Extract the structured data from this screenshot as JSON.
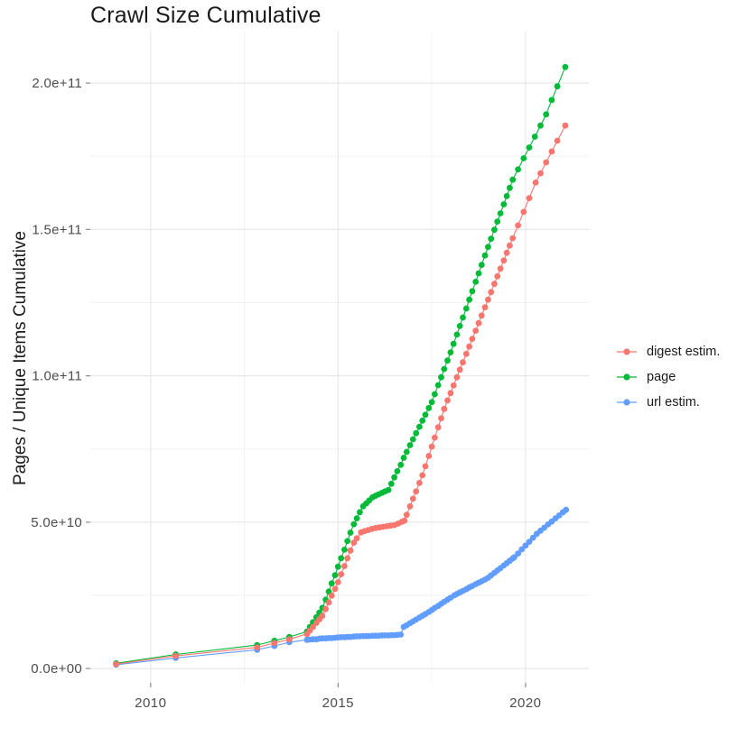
{
  "title": "Crawl Size Cumulative",
  "chart_data": {
    "type": "scatter",
    "title": "Crawl Size Cumulative",
    "xlabel": "",
    "ylabel": "Pages / Unique Items Cumulative",
    "unit": "values are cumulative counts in billions (multiply by 1e9)",
    "grid": "on",
    "legend_position": "right",
    "x_axis": {
      "ticks": [
        {
          "v": 2010,
          "label": "2010"
        },
        {
          "v": 2015,
          "label": "2015"
        },
        {
          "v": 2020,
          "label": "2020"
        }
      ],
      "minor": [
        2012.5,
        2017.5
      ],
      "range": [
        2008.39,
        2021.69
      ]
    },
    "y_axis": {
      "ticks": [
        {
          "v": 0,
          "label": "0.0e+00"
        },
        {
          "v": 50,
          "label": "5.0e+10"
        },
        {
          "v": 100,
          "label": "1.0e+11"
        },
        {
          "v": 150,
          "label": "1.5e+11"
        },
        {
          "v": 200,
          "label": "2.0e+11"
        }
      ],
      "minor": [
        25,
        75,
        125,
        175
      ],
      "range": [
        -4.9,
        217.6
      ]
    },
    "legend": [
      {
        "label": "digest estim.",
        "color": "#F8766D"
      },
      {
        "label": "page",
        "color": "#00BA38"
      },
      {
        "label": "url estim.",
        "color": "#619CFF"
      }
    ],
    "series": [
      {
        "name": "digest estim.",
        "color": "#F8766D",
        "points": [
          [
            2009.08,
            1.5
          ],
          [
            2010.67,
            4.3
          ],
          [
            2012.84,
            7.2
          ],
          [
            2013.3,
            8.7
          ],
          [
            2013.7,
            10.0
          ],
          [
            2014.17,
            11.8
          ],
          [
            2014.25,
            13.0
          ],
          [
            2014.33,
            14.2
          ],
          [
            2014.42,
            15.6
          ],
          [
            2014.5,
            16.8
          ],
          [
            2014.58,
            18.0
          ],
          [
            2014.67,
            20.3
          ],
          [
            2014.75,
            22.6
          ],
          [
            2014.83,
            24.9
          ],
          [
            2014.92,
            27.2
          ],
          [
            2015.0,
            29.5
          ],
          [
            2015.08,
            32.2
          ],
          [
            2015.17,
            35.0
          ],
          [
            2015.25,
            37.7
          ],
          [
            2015.33,
            40.3
          ],
          [
            2015.42,
            43.0
          ],
          [
            2015.5,
            44.5
          ],
          [
            2015.61,
            46.5
          ],
          [
            2015.7,
            46.9
          ],
          [
            2015.8,
            47.3
          ],
          [
            2015.9,
            47.7
          ],
          [
            2016.0,
            48.0
          ],
          [
            2016.1,
            48.2
          ],
          [
            2016.2,
            48.4
          ],
          [
            2016.3,
            48.6
          ],
          [
            2016.4,
            48.8
          ],
          [
            2016.5,
            49.0
          ],
          [
            2016.6,
            49.5
          ],
          [
            2016.7,
            50.1
          ],
          [
            2016.77,
            50.5
          ],
          [
            2016.83,
            52.5
          ],
          [
            2016.92,
            55.4
          ],
          [
            2017.0,
            58.0
          ],
          [
            2017.08,
            60.5
          ],
          [
            2017.17,
            63.4
          ],
          [
            2017.25,
            66.0
          ],
          [
            2017.33,
            69.1
          ],
          [
            2017.42,
            72.6
          ],
          [
            2017.5,
            75.8
          ],
          [
            2017.58,
            78.9
          ],
          [
            2017.67,
            82.4
          ],
          [
            2017.75,
            85.5
          ],
          [
            2017.83,
            88.7
          ],
          [
            2017.92,
            91.6
          ],
          [
            2018.0,
            94.1
          ],
          [
            2018.08,
            96.7
          ],
          [
            2018.17,
            99.5
          ],
          [
            2018.25,
            102.1
          ],
          [
            2018.33,
            104.6
          ],
          [
            2018.42,
            107.5
          ],
          [
            2018.5,
            110.0
          ],
          [
            2018.58,
            112.6
          ],
          [
            2018.67,
            115.4
          ],
          [
            2018.75,
            118.0
          ],
          [
            2018.83,
            120.6
          ],
          [
            2018.92,
            123.4
          ],
          [
            2019.0,
            126.0
          ],
          [
            2019.08,
            128.6
          ],
          [
            2019.17,
            131.4
          ],
          [
            2019.25,
            134.0
          ],
          [
            2019.33,
            136.6
          ],
          [
            2019.42,
            139.4
          ],
          [
            2019.5,
            142.0
          ],
          [
            2019.58,
            144.5
          ],
          [
            2019.66,
            147.0
          ],
          [
            2019.8,
            151.4
          ],
          [
            2019.95,
            156.0
          ],
          [
            2020.1,
            160.7
          ],
          [
            2020.27,
            166.0
          ],
          [
            2020.4,
            169.2
          ],
          [
            2020.55,
            172.9
          ],
          [
            2020.7,
            176.6
          ],
          [
            2020.85,
            180.3
          ],
          [
            2021.06,
            185.5
          ]
        ]
      },
      {
        "name": "page",
        "color": "#00BA38",
        "points": [
          [
            2009.08,
            1.8
          ],
          [
            2010.67,
            4.8
          ],
          [
            2012.84,
            8.0
          ],
          [
            2013.3,
            9.5
          ],
          [
            2013.7,
            10.8
          ],
          [
            2014.17,
            12.6
          ],
          [
            2014.25,
            14.2
          ],
          [
            2014.33,
            15.8
          ],
          [
            2014.42,
            17.5
          ],
          [
            2014.5,
            19.1
          ],
          [
            2014.58,
            20.7
          ],
          [
            2014.67,
            23.5
          ],
          [
            2014.75,
            26.3
          ],
          [
            2014.83,
            29.1
          ],
          [
            2014.92,
            31.9
          ],
          [
            2015.0,
            34.8
          ],
          [
            2015.08,
            37.7
          ],
          [
            2015.17,
            40.6
          ],
          [
            2015.25,
            43.5
          ],
          [
            2015.33,
            46.4
          ],
          [
            2015.42,
            49.3
          ],
          [
            2015.5,
            51.3
          ],
          [
            2015.58,
            53.4
          ],
          [
            2015.67,
            55.4
          ],
          [
            2015.75,
            56.4
          ],
          [
            2015.83,
            57.4
          ],
          [
            2015.92,
            58.5
          ],
          [
            2016.0,
            59.0
          ],
          [
            2016.08,
            59.5
          ],
          [
            2016.17,
            60.0
          ],
          [
            2016.25,
            60.5
          ],
          [
            2016.34,
            61.0
          ],
          [
            2016.42,
            63.1
          ],
          [
            2016.5,
            65.3
          ],
          [
            2016.58,
            67.4
          ],
          [
            2016.67,
            69.6
          ],
          [
            2016.75,
            72.0
          ],
          [
            2016.83,
            74.0
          ],
          [
            2016.92,
            76.3
          ],
          [
            2017.0,
            78.3
          ],
          [
            2017.08,
            80.4
          ],
          [
            2017.17,
            82.6
          ],
          [
            2017.25,
            84.7
          ],
          [
            2017.33,
            86.7
          ],
          [
            2017.42,
            89.0
          ],
          [
            2017.5,
            91.0
          ],
          [
            2017.58,
            93.7
          ],
          [
            2017.67,
            96.8
          ],
          [
            2017.75,
            99.5
          ],
          [
            2017.83,
            102.3
          ],
          [
            2017.92,
            105.2
          ],
          [
            2018.0,
            108.0
          ],
          [
            2018.08,
            110.9
          ],
          [
            2018.17,
            114.1
          ],
          [
            2018.25,
            117.0
          ],
          [
            2018.33,
            119.9
          ],
          [
            2018.42,
            123.0
          ],
          [
            2018.5,
            126.0
          ],
          [
            2018.58,
            128.9
          ],
          [
            2018.67,
            132.1
          ],
          [
            2018.75,
            135.0
          ],
          [
            2018.83,
            137.9
          ],
          [
            2018.92,
            141.1
          ],
          [
            2019.0,
            144.0
          ],
          [
            2019.08,
            146.8
          ],
          [
            2019.17,
            149.9
          ],
          [
            2019.25,
            152.7
          ],
          [
            2019.33,
            155.5
          ],
          [
            2019.42,
            158.6
          ],
          [
            2019.5,
            161.4
          ],
          [
            2019.58,
            164.2
          ],
          [
            2019.66,
            167.0
          ],
          [
            2019.8,
            170.5
          ],
          [
            2019.95,
            174.3
          ],
          [
            2020.1,
            178.0
          ],
          [
            2020.25,
            181.7
          ],
          [
            2020.4,
            185.5
          ],
          [
            2020.55,
            189.3
          ],
          [
            2020.7,
            194.2
          ],
          [
            2020.85,
            198.9
          ],
          [
            2021.06,
            205.5
          ]
        ]
      },
      {
        "name": "url estim.",
        "color": "#619CFF",
        "points": [
          [
            2009.08,
            1.3
          ],
          [
            2010.67,
            3.6
          ],
          [
            2012.84,
            6.4
          ],
          [
            2013.3,
            7.7
          ],
          [
            2013.7,
            9.0
          ],
          [
            2014.17,
            9.8
          ],
          [
            2014.25,
            9.9
          ],
          [
            2014.33,
            10.0
          ],
          [
            2014.42,
            10.0
          ],
          [
            2014.5,
            10.2
          ],
          [
            2014.58,
            10.3
          ],
          [
            2014.67,
            10.3
          ],
          [
            2014.75,
            10.4
          ],
          [
            2014.83,
            10.4
          ],
          [
            2014.92,
            10.5
          ],
          [
            2015.0,
            10.6
          ],
          [
            2015.08,
            10.7
          ],
          [
            2015.17,
            10.7
          ],
          [
            2015.25,
            10.8
          ],
          [
            2015.33,
            10.8
          ],
          [
            2015.42,
            10.9
          ],
          [
            2015.5,
            11.0
          ],
          [
            2015.58,
            11.0
          ],
          [
            2015.67,
            11.1
          ],
          [
            2015.75,
            11.1
          ],
          [
            2015.83,
            11.1
          ],
          [
            2015.92,
            11.2
          ],
          [
            2016.0,
            11.2
          ],
          [
            2016.08,
            11.2
          ],
          [
            2016.17,
            11.3
          ],
          [
            2016.25,
            11.3
          ],
          [
            2016.34,
            11.3
          ],
          [
            2016.42,
            11.4
          ],
          [
            2016.5,
            11.4
          ],
          [
            2016.58,
            11.5
          ],
          [
            2016.67,
            11.6
          ],
          [
            2016.75,
            14.2
          ],
          [
            2016.83,
            14.8
          ],
          [
            2016.92,
            15.5
          ],
          [
            2017.0,
            16.1
          ],
          [
            2017.08,
            16.7
          ],
          [
            2017.17,
            17.4
          ],
          [
            2017.25,
            18.0
          ],
          [
            2017.33,
            18.6
          ],
          [
            2017.42,
            19.3
          ],
          [
            2017.5,
            20.0
          ],
          [
            2017.58,
            20.7
          ],
          [
            2017.67,
            21.4
          ],
          [
            2017.75,
            22.1
          ],
          [
            2017.83,
            22.8
          ],
          [
            2017.92,
            23.5
          ],
          [
            2018.0,
            24.2
          ],
          [
            2018.1,
            25.0
          ],
          [
            2018.17,
            25.5
          ],
          [
            2018.25,
            26.0
          ],
          [
            2018.33,
            26.5
          ],
          [
            2018.42,
            27.1
          ],
          [
            2018.5,
            27.7
          ],
          [
            2018.58,
            28.2
          ],
          [
            2018.67,
            28.8
          ],
          [
            2018.75,
            29.3
          ],
          [
            2018.83,
            29.8
          ],
          [
            2018.92,
            30.4
          ],
          [
            2019.0,
            31.0
          ],
          [
            2019.08,
            31.8
          ],
          [
            2019.17,
            32.7
          ],
          [
            2019.25,
            33.5
          ],
          [
            2019.33,
            34.3
          ],
          [
            2019.42,
            35.2
          ],
          [
            2019.5,
            36.0
          ],
          [
            2019.58,
            36.8
          ],
          [
            2019.66,
            37.6
          ],
          [
            2019.7,
            38.0
          ],
          [
            2019.8,
            39.3
          ],
          [
            2019.9,
            40.7
          ],
          [
            2020.0,
            42.0
          ],
          [
            2020.1,
            43.3
          ],
          [
            2020.2,
            44.7
          ],
          [
            2020.3,
            46.0
          ],
          [
            2020.4,
            47.1
          ],
          [
            2020.5,
            48.1
          ],
          [
            2020.6,
            49.2
          ],
          [
            2020.7,
            50.2
          ],
          [
            2020.8,
            51.3
          ],
          [
            2020.9,
            52.3
          ],
          [
            2021.0,
            53.4
          ],
          [
            2021.08,
            54.2
          ]
        ]
      }
    ],
    "colors": {
      "grid_major": "#E3E3E3",
      "grid_minor": "#F2F2F2",
      "tick_mark": "#8C8C8C",
      "tick_label": "#4D4D4D",
      "text": "#1A1A1A",
      "background": "#FFFFFF"
    }
  }
}
